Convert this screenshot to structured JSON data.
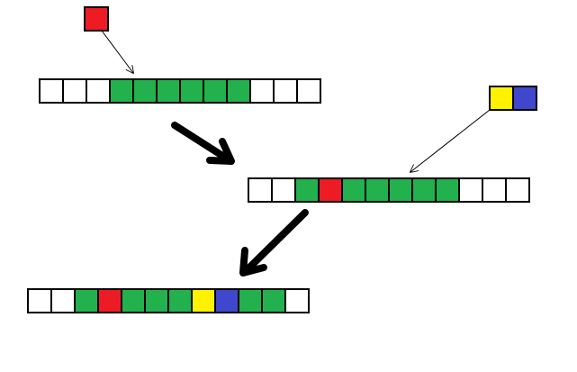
{
  "colors": {
    "empty": "#ffffff",
    "green": "#22b14c",
    "red": "#ed1c24",
    "yellow": "#fff200",
    "blue": "#3f48cc",
    "outline": "#000000"
  },
  "insert_blocks": {
    "single": [
      "red"
    ],
    "pair": [
      "yellow",
      "blue"
    ]
  },
  "rows": {
    "initial": [
      "empty",
      "empty",
      "empty",
      "green",
      "green",
      "green",
      "green",
      "green",
      "green",
      "empty",
      "empty",
      "empty"
    ],
    "after_first_insert": [
      "empty",
      "empty",
      "green",
      "red",
      "green",
      "green",
      "green",
      "green",
      "green",
      "empty",
      "empty",
      "empty"
    ],
    "after_second_insert": [
      "empty",
      "empty",
      "green",
      "red",
      "green",
      "green",
      "green",
      "yellow",
      "blue",
      "green",
      "green",
      "empty"
    ]
  },
  "arrows": {
    "pointer_count": 2,
    "step_arrow_count": 2
  }
}
